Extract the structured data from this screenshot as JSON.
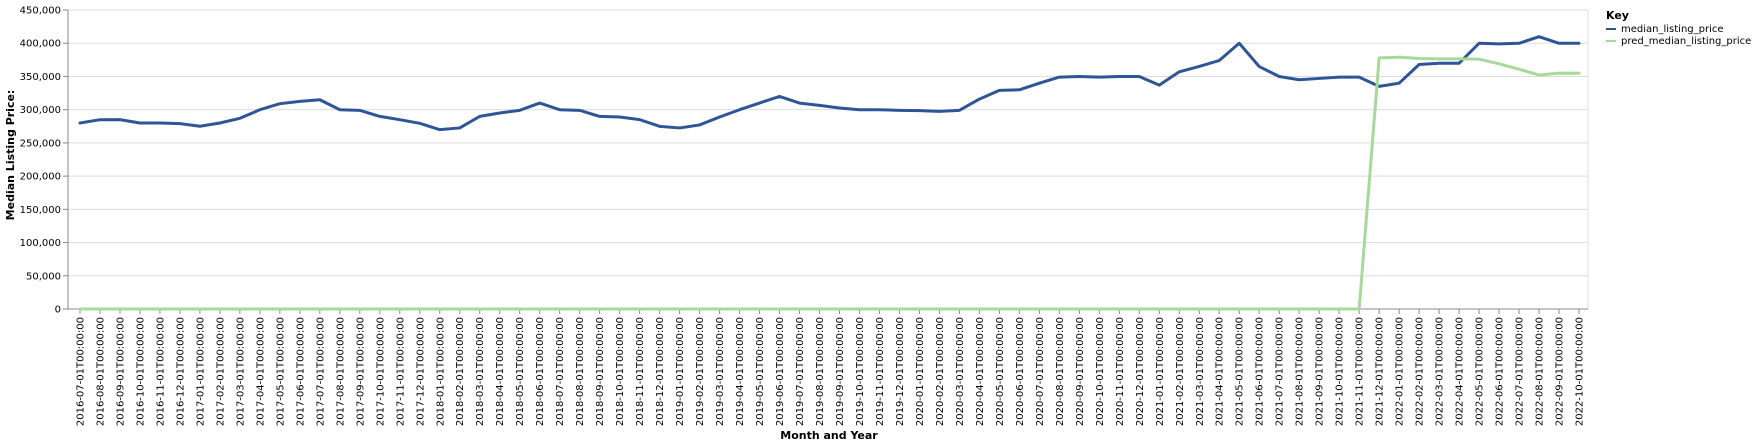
{
  "chart_data": {
    "type": "line",
    "xlabel": "Month and Year",
    "ylabel": "Median Listing Price:",
    "ylim": [
      0,
      450000
    ],
    "yticks": [
      0,
      50000,
      100000,
      150000,
      200000,
      250000,
      300000,
      350000,
      400000,
      450000
    ],
    "ytick_labels": [
      "0",
      "50,000",
      "100,000",
      "150,000",
      "200,000",
      "250,000",
      "300,000",
      "350,000",
      "400,000",
      "450,000"
    ],
    "grid": "horizontal",
    "legend": {
      "title": "Key",
      "placement": "top-right outside"
    },
    "x": [
      "2016-07-01T00:00:00",
      "2016-08-01T00:00:00",
      "2016-09-01T00:00:00",
      "2016-10-01T00:00:00",
      "2016-11-01T00:00:00",
      "2016-12-01T00:00:00",
      "2017-01-01T00:00:00",
      "2017-02-01T00:00:00",
      "2017-03-01T00:00:00",
      "2017-04-01T00:00:00",
      "2017-05-01T00:00:00",
      "2017-06-01T00:00:00",
      "2017-07-01T00:00:00",
      "2017-08-01T00:00:00",
      "2017-09-01T00:00:00",
      "2017-10-01T00:00:00",
      "2017-11-01T00:00:00",
      "2017-12-01T00:00:00",
      "2018-01-01T00:00:00",
      "2018-02-01T00:00:00",
      "2018-03-01T00:00:00",
      "2018-04-01T00:00:00",
      "2018-05-01T00:00:00",
      "2018-06-01T00:00:00",
      "2018-07-01T00:00:00",
      "2018-08-01T00:00:00",
      "2018-09-01T00:00:00",
      "2018-10-01T00:00:00",
      "2018-11-01T00:00:00",
      "2018-12-01T00:00:00",
      "2019-01-01T00:00:00",
      "2019-02-01T00:00:00",
      "2019-03-01T00:00:00",
      "2019-04-01T00:00:00",
      "2019-05-01T00:00:00",
      "2019-06-01T00:00:00",
      "2019-07-01T00:00:00",
      "2019-08-01T00:00:00",
      "2019-09-01T00:00:00",
      "2019-10-01T00:00:00",
      "2019-11-01T00:00:00",
      "2019-12-01T00:00:00",
      "2020-01-01T00:00:00",
      "2020-02-01T00:00:00",
      "2020-03-01T00:00:00",
      "2020-04-01T00:00:00",
      "2020-05-01T00:00:00",
      "2020-06-01T00:00:00",
      "2020-07-01T00:00:00",
      "2020-08-01T00:00:00",
      "2020-09-01T00:00:00",
      "2020-10-01T00:00:00",
      "2020-11-01T00:00:00",
      "2020-12-01T00:00:00",
      "2021-01-01T00:00:00",
      "2021-02-01T00:00:00",
      "2021-03-01T00:00:00",
      "2021-04-01T00:00:00",
      "2021-05-01T00:00:00",
      "2021-06-01T00:00:00",
      "2021-07-01T00:00:00",
      "2021-08-01T00:00:00",
      "2021-09-01T00:00:00",
      "2021-10-01T00:00:00",
      "2021-11-01T00:00:00",
      "2021-12-01T00:00:00",
      "2022-01-01T00:00:00",
      "2022-02-01T00:00:00",
      "2022-03-01T00:00:00",
      "2022-04-01T00:00:00",
      "2022-05-01T00:00:00",
      "2022-06-01T00:00:00",
      "2022-07-01T00:00:00",
      "2022-08-01T00:00:00",
      "2022-09-01T00:00:00",
      "2022-10-01T00:00:00"
    ],
    "series": [
      {
        "name": "median_listing_price",
        "color": "#2f5597",
        "values": [
          280000,
          284900,
          285000,
          279900,
          279900,
          279000,
          275000,
          279900,
          287000,
          299900,
          309000,
          312500,
          314900,
          299900,
          299000,
          289900,
          284900,
          279500,
          269900,
          272500,
          289900,
          295000,
          299000,
          309900,
          299900,
          299000,
          289900,
          289000,
          285000,
          274900,
          272500,
          277000,
          289000,
          299900,
          310000,
          319900,
          309900,
          306500,
          302500,
          299900,
          299900,
          299000,
          298500,
          297500,
          299000,
          315900,
          329000,
          329900,
          339900,
          349000,
          349900,
          349000,
          349900,
          349900,
          337000,
          357000,
          365000,
          374000,
          399900,
          364900,
          349900,
          345000,
          347000,
          349000,
          349000,
          335000,
          339900,
          368000,
          369900,
          369900,
          399900,
          399000,
          399900,
          409900,
          399900,
          399900
        ]
      },
      {
        "name": "pred_median_listing_price",
        "color": "#a8d99c",
        "values": [
          0,
          0,
          0,
          0,
          0,
          0,
          0,
          0,
          0,
          0,
          0,
          0,
          0,
          0,
          0,
          0,
          0,
          0,
          0,
          0,
          0,
          0,
          0,
          0,
          0,
          0,
          0,
          0,
          0,
          0,
          0,
          0,
          0,
          0,
          0,
          0,
          0,
          0,
          0,
          0,
          0,
          0,
          0,
          0,
          0,
          0,
          0,
          0,
          0,
          0,
          0,
          0,
          0,
          0,
          0,
          0,
          0,
          0,
          0,
          0,
          0,
          0,
          0,
          0,
          0,
          378000,
          379000,
          377000,
          376500,
          376500,
          376000,
          369000,
          361000,
          352000,
          355000,
          354800
        ]
      }
    ]
  }
}
